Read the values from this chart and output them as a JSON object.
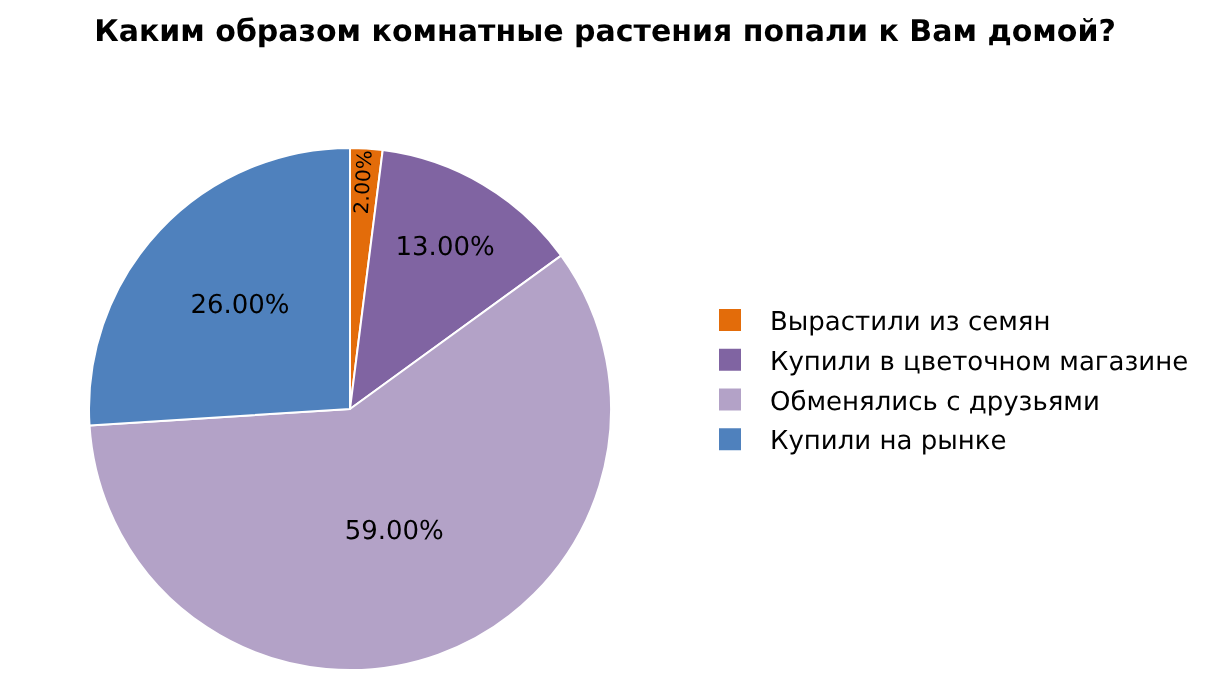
{
  "chart_data": {
    "type": "pie",
    "title": "Каким образом комнатные растения попали к Вам домой?",
    "categories": [
      "Вырастили из семян",
      "Купили в цветочном магазине",
      "Обменялись с друзьями",
      "Купили на рынке"
    ],
    "values": [
      2,
      13,
      59,
      26
    ],
    "colors": [
      "#e36c0a",
      "#8064a2",
      "#b3a2c7",
      "#4f81bd"
    ],
    "value_labels": [
      "2.00%",
      "13.00%",
      "59.00%",
      "26.00%"
    ],
    "legend": "right"
  }
}
